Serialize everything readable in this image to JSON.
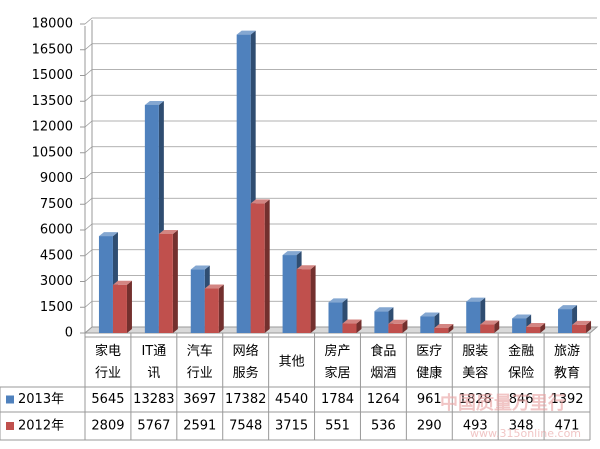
{
  "chart_data": {
    "type": "bar3d",
    "categories": [
      "家电\n行业",
      "IT通\n讯",
      "汽车\n行业",
      "网络\n服务",
      "其他",
      "房产\n家居",
      "食品\n烟酒",
      "医疗\n健康",
      "服装\n美容",
      "金融\n保险",
      "旅游\n教育"
    ],
    "series": [
      {
        "name": "2013年",
        "color": "#4f81bd",
        "values": [
          5645,
          13283,
          3697,
          17382,
          4540,
          1784,
          1264,
          961,
          1828,
          846,
          1392
        ]
      },
      {
        "name": "2012年",
        "color": "#c0504d",
        "values": [
          2809,
          5767,
          2591,
          7548,
          3715,
          551,
          536,
          290,
          493,
          348,
          471
        ]
      }
    ],
    "ylim": [
      0,
      18000
    ],
    "yticks": [
      0,
      1500,
      3000,
      4500,
      6000,
      7500,
      9000,
      10500,
      12000,
      13500,
      15000,
      16500,
      18000
    ],
    "grid": true,
    "data_table": true,
    "watermark": [
      "中国质量万里行",
      "www.315online.com"
    ]
  }
}
